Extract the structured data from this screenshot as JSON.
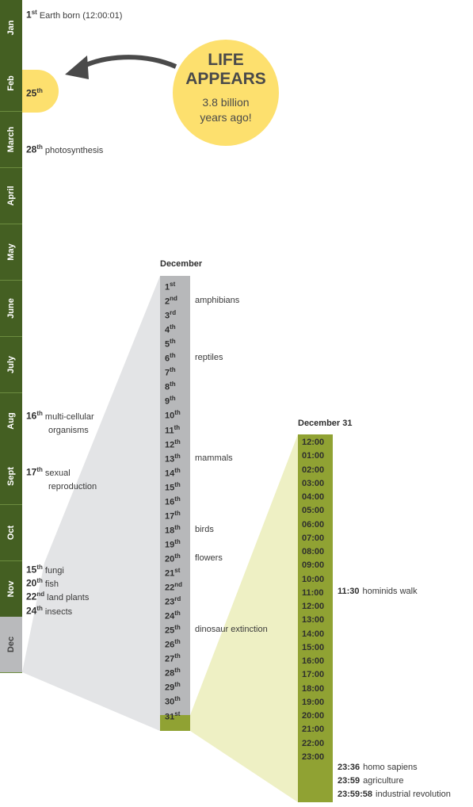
{
  "months": [
    {
      "label": "Jan"
    },
    {
      "label": "Feb"
    },
    {
      "label": "March"
    },
    {
      "label": "April"
    },
    {
      "label": "May"
    },
    {
      "label": "June"
    },
    {
      "label": "July"
    },
    {
      "label": "Aug"
    },
    {
      "label": "Sept"
    },
    {
      "label": "Oct"
    },
    {
      "label": "Nov"
    },
    {
      "label": "Dec"
    }
  ],
  "year_events": [
    {
      "day": "1",
      "suffix": "st",
      "text": "Earth born (12:00:01)"
    },
    {
      "day": "25",
      "suffix": "th",
      "text": ""
    },
    {
      "day": "28",
      "suffix": "th",
      "text": "photosynthesis"
    },
    {
      "day": "16",
      "suffix": "th",
      "text": "multi-cellular",
      "text2": "organisms"
    },
    {
      "day": "17",
      "suffix": "th",
      "text": "sexual",
      "text2": "reproduction"
    },
    {
      "day": "15",
      "suffix": "th",
      "text": "fungi"
    },
    {
      "day": "20",
      "suffix": "th",
      "text": "fish"
    },
    {
      "day": "22",
      "suffix": "nd",
      "text": "land plants"
    },
    {
      "day": "24",
      "suffix": "th",
      "text": "insects"
    }
  ],
  "life": {
    "line1": "LIFE",
    "line2": "APPEARS",
    "line3": "3.8 billion",
    "line4": "years ago!"
  },
  "december": {
    "title": "December",
    "days": [
      {
        "n": "1",
        "s": "st"
      },
      {
        "n": "2",
        "s": "nd"
      },
      {
        "n": "3",
        "s": "rd"
      },
      {
        "n": "4",
        "s": "th"
      },
      {
        "n": "5",
        "s": "th"
      },
      {
        "n": "6",
        "s": "th"
      },
      {
        "n": "7",
        "s": "th"
      },
      {
        "n": "8",
        "s": "th"
      },
      {
        "n": "9",
        "s": "th"
      },
      {
        "n": "10",
        "s": "th"
      },
      {
        "n": "11",
        "s": "th"
      },
      {
        "n": "12",
        "s": "th"
      },
      {
        "n": "13",
        "s": "th"
      },
      {
        "n": "14",
        "s": "th"
      },
      {
        "n": "15",
        "s": "th"
      },
      {
        "n": "16",
        "s": "th"
      },
      {
        "n": "17",
        "s": "th"
      },
      {
        "n": "18",
        "s": "th"
      },
      {
        "n": "19",
        "s": "th"
      },
      {
        "n": "20",
        "s": "th"
      },
      {
        "n": "21",
        "s": "st"
      },
      {
        "n": "22",
        "s": "nd"
      },
      {
        "n": "23",
        "s": "rd"
      },
      {
        "n": "24",
        "s": "th"
      },
      {
        "n": "25",
        "s": "th"
      },
      {
        "n": "26",
        "s": "th"
      },
      {
        "n": "27",
        "s": "th"
      },
      {
        "n": "28",
        "s": "th"
      },
      {
        "n": "29",
        "s": "th"
      },
      {
        "n": "30",
        "s": "th"
      },
      {
        "n": "31",
        "s": "st"
      }
    ],
    "events": [
      {
        "day": 2,
        "text": "amphibians"
      },
      {
        "day": 6,
        "text": "reptiles"
      },
      {
        "day": 13,
        "text": "mammals"
      },
      {
        "day": 18,
        "text": "birds"
      },
      {
        "day": 20,
        "text": "flowers"
      },
      {
        "day": 25,
        "text": "dinosaur extinction"
      }
    ]
  },
  "december31": {
    "title": "December 31",
    "hours": [
      "12:00",
      "01:00",
      "02:00",
      "03:00",
      "04:00",
      "05:00",
      "06:00",
      "07:00",
      "08:00",
      "09:00",
      "10:00",
      "11:00",
      "12:00",
      "13:00",
      "14:00",
      "15:00",
      "16:00",
      "17:00",
      "18:00",
      "19:00",
      "20:00",
      "21:00",
      "22:00",
      "23:00"
    ],
    "events": [
      {
        "time": "11:30",
        "text": "hominids walk"
      },
      {
        "time": "23:36",
        "text": "homo sapiens"
      },
      {
        "time": "23:59",
        "text": "agriculture"
      },
      {
        "time": "23:59:58",
        "text": "industrial revolution"
      }
    ]
  },
  "colors": {
    "month_green": "#445f22",
    "dec_grey": "#b9babc",
    "yellow": "#fde06e",
    "olive": "#90a233"
  }
}
